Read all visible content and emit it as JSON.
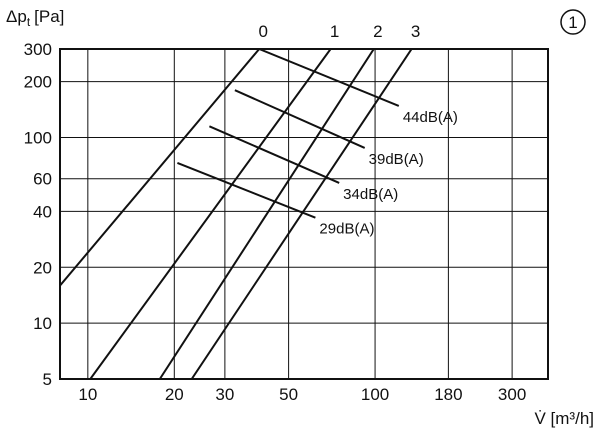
{
  "chart_data": {
    "type": "line",
    "x_scale": "log",
    "y_scale": "log",
    "xlim": [
      8,
      400
    ],
    "ylim": [
      5,
      300
    ],
    "grid": true,
    "ylabel": "Δp",
    "ylabel_sub": "t",
    "ylabel_unit": "[Pa]",
    "xlabel": "V̇ [m³/h]",
    "figure_badge": "①",
    "x_ticks": [
      {
        "value": 10,
        "label": "10"
      },
      {
        "value": 20,
        "label": "20"
      },
      {
        "value": 30,
        "label": "30"
      },
      {
        "value": 50,
        "label": "50"
      },
      {
        "value": 100,
        "label": "100"
      },
      {
        "value": 180,
        "label": "180"
      },
      {
        "value": 300,
        "label": "300"
      }
    ],
    "y_ticks": [
      {
        "value": 5,
        "label": "5"
      },
      {
        "value": 10,
        "label": "10"
      },
      {
        "value": 20,
        "label": "20"
      },
      {
        "value": 40,
        "label": "40"
      },
      {
        "value": 60,
        "label": "60"
      },
      {
        "value": 100,
        "label": "100"
      },
      {
        "value": 200,
        "label": "200"
      },
      {
        "value": 300,
        "label": "300"
      }
    ],
    "series": [
      {
        "name": "0",
        "points": [
          [
            7.6,
            14.5
          ],
          [
            39.5,
            300
          ]
        ]
      },
      {
        "name": "1",
        "points": [
          [
            10.2,
            5
          ],
          [
            70,
            300
          ]
        ]
      },
      {
        "name": "2",
        "points": [
          [
            17.8,
            5
          ],
          [
            99,
            300
          ]
        ]
      },
      {
        "name": "3",
        "points": [
          [
            23,
            5
          ],
          [
            134,
            300
          ]
        ]
      }
    ],
    "sound_lines": [
      {
        "label": "44dB(A)",
        "points": [
          [
            39.5,
            300
          ],
          [
            121,
            148
          ]
        ]
      },
      {
        "label": "39dB(A)",
        "points": [
          [
            32.5,
            180
          ],
          [
            92,
            88
          ]
        ]
      },
      {
        "label": "34dB(A)",
        "points": [
          [
            26.5,
            115
          ],
          [
            75,
            57
          ]
        ]
      },
      {
        "label": "29dB(A)",
        "points": [
          [
            20.5,
            73
          ],
          [
            62,
            37
          ]
        ]
      }
    ]
  }
}
